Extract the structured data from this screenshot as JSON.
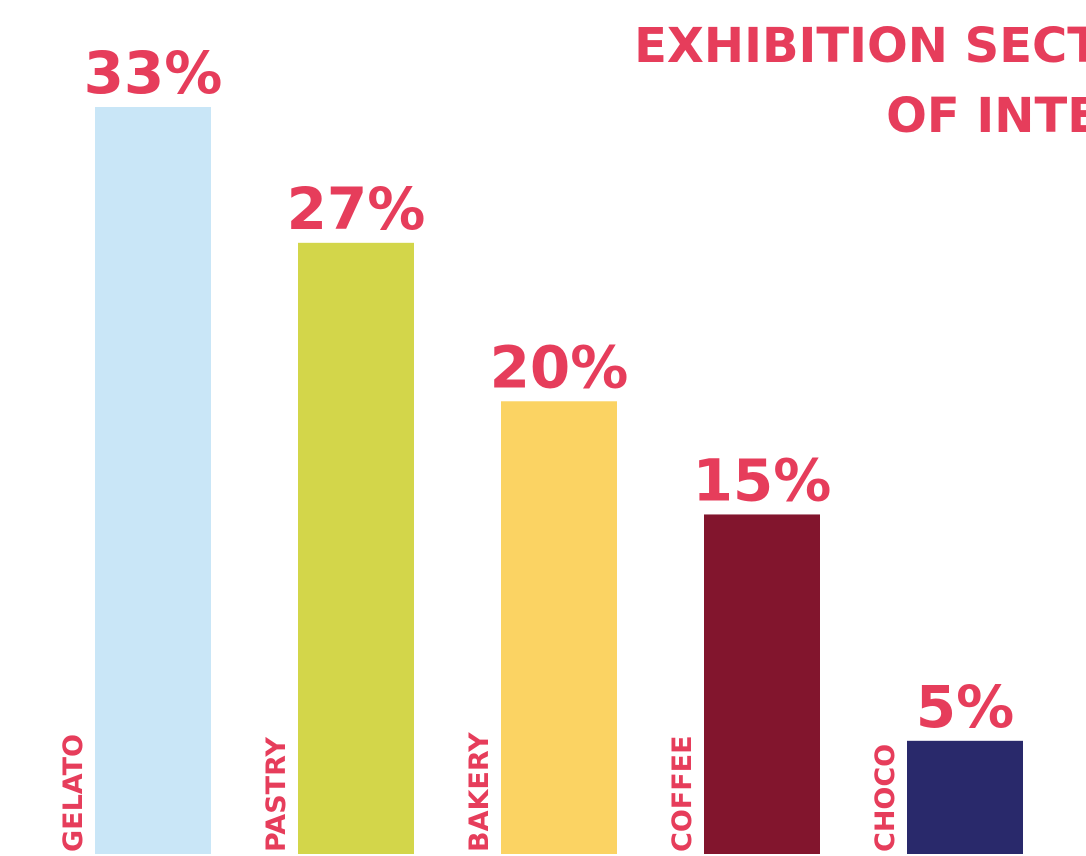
{
  "chart_data": {
    "type": "bar",
    "title_lines": [
      "EXHIBITION SECT",
      "OF INTE"
    ],
    "categories": [
      "GELATO",
      "PASTRY",
      "BAKERY",
      "COFFEE",
      "CHOCO"
    ],
    "values": [
      33,
      27,
      20,
      15,
      5
    ],
    "value_labels": [
      "33%",
      "27%",
      "20%",
      "15%",
      "5%"
    ],
    "colors": [
      "#c9e6f7",
      "#d3d64a",
      "#fbd363",
      "#82152d",
      "#29296b"
    ],
    "label_color": "#e63d5b",
    "ylim": [
      0,
      33
    ]
  }
}
